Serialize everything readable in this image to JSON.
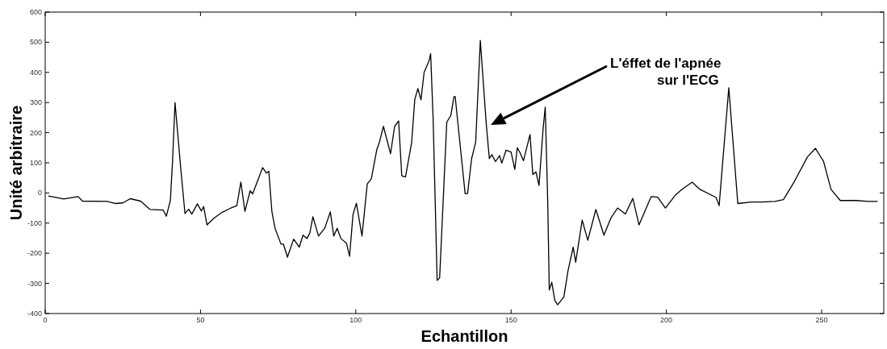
{
  "chart_data": {
    "type": "line",
    "xlabel": "Echantillon",
    "ylabel": "Unité arbitraire",
    "xlim": [
      0,
      270
    ],
    "ylim": [
      -400,
      600
    ],
    "xticks": [
      0,
      50,
      100,
      150,
      200,
      250
    ],
    "yticks": [
      -400,
      -300,
      -200,
      -100,
      0,
      100,
      200,
      300,
      400,
      500,
      600
    ],
    "grid": false,
    "marker": "none",
    "line_style": "solid",
    "annotations": [
      "L'éffet de l'apnée\nsur l'ECG"
    ],
    "series": [
      {
        "color": "#000000",
        "x": [
          1,
          6,
          10.6,
          12,
          20,
          22.5,
          25,
          27.4,
          30.7,
          33.8,
          38,
          39,
          40.3,
          41,
          41.8,
          43.6,
          45,
          46.2,
          47.2,
          49,
          50.3,
          51,
          52.1,
          54.4,
          57,
          59.6,
          61.7,
          63,
          64.3,
          66,
          66.8,
          70,
          71.2,
          72,
          73,
          74,
          75.9,
          76.7,
          78,
          80,
          81.8,
          83,
          84.3,
          85.2,
          86.2,
          88,
          90,
          91.8,
          92.9,
          94,
          95.2,
          97,
          98,
          99.1,
          100.2,
          102,
          103.7,
          105,
          106.8,
          107.6,
          108.9,
          111.2,
          112.5,
          113.8,
          114.8,
          116,
          118,
          119,
          120,
          121,
          122,
          123.6,
          124.1,
          124.9,
          126.2,
          127,
          129.3,
          130.6,
          131.6,
          132,
          135.2,
          136,
          137.3,
          138.6,
          140.1,
          142,
          143,
          143.8,
          145,
          146.3,
          147,
          148.4,
          150,
          151.2,
          152,
          153,
          154,
          156.1,
          157,
          158,
          159,
          160.3,
          161,
          161.8,
          162.3,
          163.1,
          164.1,
          165,
          167,
          168.3,
          170,
          170.8,
          172.9,
          174.7,
          177.3,
          179.9,
          182.2,
          184.3,
          186.8,
          189.2,
          191.2,
          195.1,
          197.2,
          199.7,
          203,
          205,
          208.3,
          210.8,
          216,
          217,
          220.1,
          223,
          227.4,
          230.7,
          235,
          237.7,
          241,
          245.4,
          248,
          250.6,
          253,
          256,
          261,
          265,
          268
        ],
        "values": [
          -10,
          -20,
          -12,
          -27,
          -28,
          -35,
          -33,
          -19,
          -27,
          -55,
          -57,
          -77,
          -25,
          105,
          300,
          87,
          -68,
          -54,
          -70,
          -36,
          -60,
          -45,
          -106,
          -83,
          -64,
          -51,
          -42,
          36,
          -61,
          7,
          -3,
          84,
          66,
          72,
          -63,
          -117,
          -169,
          -170,
          -213,
          -153,
          -180,
          -140,
          -151,
          -133,
          -79,
          -143,
          -117,
          -63,
          -143,
          -117,
          -151,
          -167,
          -210,
          -72,
          -34,
          -143,
          30,
          47,
          145,
          168,
          221,
          130,
          221,
          239,
          57,
          53,
          168,
          311,
          346,
          309,
          400,
          439,
          462,
          248,
          -290,
          -282,
          235,
          257,
          319,
          320,
          -2,
          -2,
          114,
          168,
          506,
          230,
          114,
          127,
          104,
          124,
          99,
          142,
          136,
          78,
          150,
          131,
          107,
          194,
          61,
          70,
          25,
          212,
          285,
          -28,
          -322,
          -296,
          -357,
          -371,
          -345,
          -260,
          -180,
          -230,
          -90,
          -157,
          -55,
          -140,
          -82,
          -50,
          -70,
          -18,
          -106,
          -12,
          -14,
          -50,
          -6,
          12,
          36,
          12,
          -15,
          -42,
          349,
          -35,
          -30,
          -30,
          -28,
          -22,
          34,
          119,
          148,
          105,
          12,
          -25,
          -25,
          -28,
          -28
        ]
      }
    ]
  }
}
